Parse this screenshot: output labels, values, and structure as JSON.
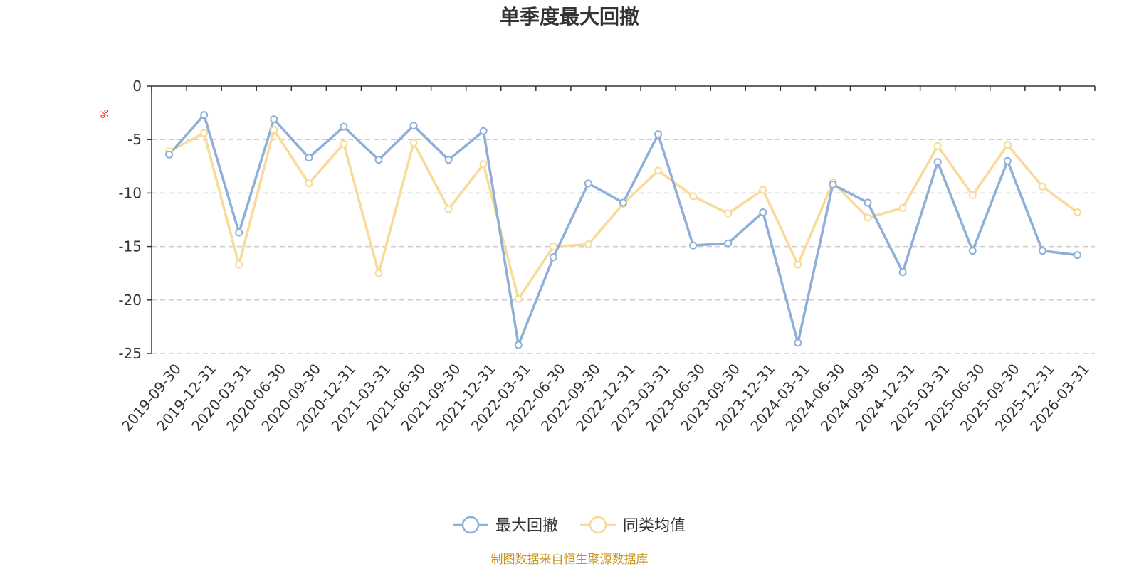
{
  "chart_data": {
    "type": "line",
    "title": "单季度最大回撤",
    "ylabel": "%",
    "ylim": [
      -25,
      0
    ],
    "yticks": [
      0,
      -5,
      -10,
      -15,
      -20,
      -25
    ],
    "grid": true,
    "legend_position": "bottom-center",
    "x": [
      "2019-09-30",
      "2019-12-31",
      "2020-03-31",
      "2020-06-30",
      "2020-09-30",
      "2020-12-31",
      "2021-03-31",
      "2021-06-30",
      "2021-09-30",
      "2021-12-31",
      "2022-03-31",
      "2022-06-30",
      "2022-09-30",
      "2022-12-31",
      "2023-03-31",
      "2023-06-30",
      "2023-09-30",
      "2023-12-31",
      "2024-03-31",
      "2024-06-30",
      "2024-09-30",
      "2024-12-31",
      "2025-03-31",
      "2025-06-30",
      "2025-09-30",
      "2025-12-31",
      "2026-03-31"
    ],
    "series": [
      {
        "name": "最大回撤",
        "color": "#8eafd8",
        "values": [
          -6.4,
          -2.7,
          -13.7,
          -3.1,
          -6.7,
          -3.8,
          -6.9,
          -3.7,
          -6.9,
          -4.2,
          -24.2,
          -16.0,
          -9.1,
          -10.9,
          -4.5,
          -14.9,
          -14.7,
          -11.8,
          -24.0,
          -9.2,
          -10.9,
          -17.4,
          -7.1,
          -15.4,
          -7.0,
          -15.4,
          -15.8
        ]
      },
      {
        "name": "同类均值",
        "color": "#f8da99",
        "values": [
          -6.1,
          -4.4,
          -16.7,
          -4.1,
          -9.1,
          -5.4,
          -17.5,
          -5.3,
          -11.5,
          -7.3,
          -19.9,
          -15.0,
          -14.8,
          -11.0,
          -7.9,
          -10.3,
          -11.9,
          -9.7,
          -16.7,
          -9.0,
          -12.3,
          -11.4,
          -5.6,
          -10.2,
          -5.5,
          -9.4,
          -11.8
        ]
      }
    ]
  },
  "source": "制图数据来自恒生聚源数据库"
}
